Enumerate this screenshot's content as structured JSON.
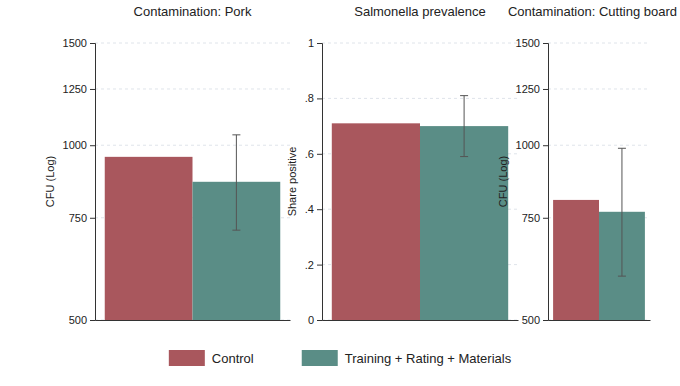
{
  "chart_data": [
    {
      "type": "bar",
      "title": "Contamination: Pork",
      "y_label": "CFU (Log)",
      "categories": [
        null
      ],
      "series": [
        {
          "name": "Control",
          "color": "#a9575d",
          "values": [
            955
          ]
        },
        {
          "name": "Training + Rating + Materials",
          "color": "#5a8d86",
          "values": [
            865
          ],
          "ci_low": [
            714
          ],
          "ci_high": [
            1042
          ]
        }
      ],
      "ylim": [
        500,
        1500
      ],
      "yticks": [
        500,
        750,
        1000,
        1250,
        1500
      ],
      "log": "y",
      "grid": true,
      "tick_labels": "y",
      "legend": "bottom"
    },
    {
      "type": "bar",
      "title": "Salmonella prevalence",
      "y_label": "Share positive",
      "categories": [
        null
      ],
      "series": [
        {
          "name": "Control",
          "color": "#a9575d",
          "values": [
            0.71
          ]
        },
        {
          "name": "Training + Rating + Materials",
          "color": "#5a8d86",
          "values": [
            0.7
          ],
          "ci_low": [
            0.59
          ],
          "ci_high": [
            0.81
          ]
        }
      ],
      "ylim": [
        0,
        1
      ],
      "yticks": [
        0,
        {
          "value": 0.2,
          "label": ".2"
        },
        {
          "value": 0.4,
          "label": ".4"
        },
        {
          "value": 0.6,
          "label": ".6"
        },
        {
          "value": 0.8,
          "label": ".8"
        },
        1
      ],
      "grid": true,
      "tick_labels": "y"
    },
    {
      "type": "bar",
      "title": "Contamination: Cutting board",
      "y_label": "CFU (Log)",
      "categories": [
        null
      ],
      "series": [
        {
          "name": "Control",
          "color": "#a9575d",
          "values": [
            805
          ]
        },
        {
          "name": "Training + Rating + Materials",
          "color": "#5a8d86",
          "values": [
            768
          ],
          "ci_low": [
            595
          ],
          "ci_high": [
            988
          ]
        }
      ],
      "ylim": [
        500,
        1500
      ],
      "yticks": [
        500,
        750,
        1000,
        1250,
        1500
      ],
      "log": "y",
      "grid": true,
      "tick_labels": "y"
    }
  ]
}
